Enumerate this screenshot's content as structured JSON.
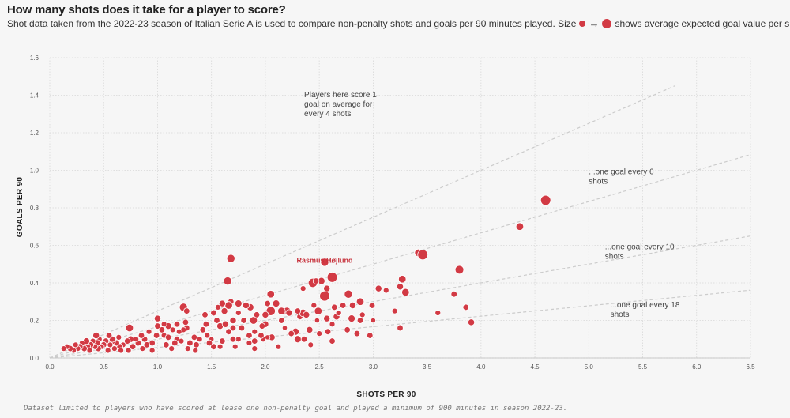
{
  "header": {
    "title": "How many shots does it take for a player to score?",
    "subtitle_pre": "Shot data taken from the 2022-23 season of Italian Serie A is used to compare non-penalty shots and goals per 90 minutes played. Size",
    "subtitle_arrow": "→",
    "subtitle_post": "shows average expected goal value per shot."
  },
  "footnote": "Dataset limited to players who have scored at lease one non-penalty goal and played a minimum of 900 minutes in season 2022-23.",
  "colors": {
    "point": "#d23a44",
    "point_stroke": "#ffffff",
    "ref_line": "#cccccc",
    "grid": "#d8d8d8"
  },
  "chart_data": {
    "type": "scatter",
    "xlabel": "SHOTS PER 90",
    "ylabel": "GOALS PER 90",
    "xlim": [
      0,
      6.5
    ],
    "ylim": [
      0,
      1.6
    ],
    "grid": true,
    "x_ticks": [
      "0.0",
      "0.5",
      "1.0",
      "1.5",
      "2.0",
      "2.5",
      "3.0",
      "3.5",
      "4.0",
      "4.5",
      "5.0",
      "5.5",
      "6.0",
      "6.5"
    ],
    "y_ticks": [
      "0.0",
      "0.2",
      "0.4",
      "0.6",
      "0.8",
      "1.0",
      "1.2",
      "1.4",
      "1.6"
    ],
    "reference_lines": [
      {
        "slope": 0.25,
        "label": "Players here score 1 goal on average for every 4 shots",
        "label_lines": [
          "Players here score 1",
          "goal on average for",
          "every 4 shots"
        ],
        "label_at": [
          2.36,
          1.39
        ]
      },
      {
        "slope": 0.1667,
        "label": "...one goal every 6 shots",
        "label_lines": [
          "...one goal every 6",
          "shots"
        ],
        "label_at": [
          5.0,
          0.98
        ]
      },
      {
        "slope": 0.1,
        "label": "...one goal every 10 shots",
        "label_lines": [
          "...one goal every 10",
          "shots"
        ],
        "label_at": [
          5.15,
          0.58
        ]
      },
      {
        "slope": 0.0556,
        "label": "...one goal every 18 shots",
        "label_lines": [
          "...one goal every 18",
          "shots"
        ],
        "label_at": [
          5.2,
          0.27
        ]
      }
    ],
    "annotations": [
      {
        "text": "Rasmus Højlund",
        "x": 2.55,
        "y": 0.5
      }
    ],
    "points": [
      [
        4.6,
        0.84,
        2
      ],
      [
        4.36,
        0.7,
        1.5
      ],
      [
        3.42,
        0.56,
        1.5
      ],
      [
        3.46,
        0.55,
        2
      ],
      [
        3.8,
        0.47,
        1.7
      ],
      [
        3.75,
        0.34,
        1.2
      ],
      [
        3.86,
        0.27,
        1.2
      ],
      [
        3.91,
        0.19,
        1.3
      ],
      [
        3.6,
        0.24,
        1.1
      ],
      [
        3.27,
        0.42,
        1.5
      ],
      [
        3.25,
        0.38,
        1.3
      ],
      [
        3.3,
        0.35,
        1.5
      ],
      [
        3.05,
        0.37,
        1.3
      ],
      [
        3.12,
        0.36,
        1.1
      ],
      [
        2.99,
        0.28,
        1.2
      ],
      [
        3.25,
        0.16,
        1.2
      ],
      [
        2.97,
        0.12,
        1.2
      ],
      [
        3.2,
        0.25,
        1.1
      ],
      [
        3.0,
        0.2,
        1
      ],
      [
        2.55,
        0.51,
        1.6
      ],
      [
        2.62,
        0.44,
        1.3
      ],
      [
        2.62,
        0.43,
        2
      ],
      [
        2.52,
        0.41,
        1.4
      ],
      [
        2.44,
        0.4,
        1.8
      ],
      [
        2.47,
        0.41,
        1.2
      ],
      [
        2.35,
        0.37,
        1.1
      ],
      [
        2.55,
        0.33,
        2
      ],
      [
        2.57,
        0.37,
        1.3
      ],
      [
        2.77,
        0.34,
        1.6
      ],
      [
        2.88,
        0.3,
        1.5
      ],
      [
        2.81,
        0.28,
        1.3
      ],
      [
        2.72,
        0.28,
        1.2
      ],
      [
        2.49,
        0.25,
        1.5
      ],
      [
        2.45,
        0.28,
        1.1
      ],
      [
        2.32,
        0.22,
        1.2
      ],
      [
        2.35,
        0.24,
        1.5
      ],
      [
        2.38,
        0.23,
        1.3
      ],
      [
        2.66,
        0.22,
        1.3
      ],
      [
        2.68,
        0.24,
        1.1
      ],
      [
        2.62,
        0.18,
        1.1
      ],
      [
        2.8,
        0.21,
        1.4
      ],
      [
        2.88,
        0.2,
        1.2
      ],
      [
        2.57,
        0.21,
        1.3
      ],
      [
        2.48,
        0.2,
        1
      ],
      [
        2.41,
        0.15,
        1.3
      ],
      [
        2.28,
        0.14,
        1.4
      ],
      [
        2.3,
        0.1,
        1.4
      ],
      [
        2.36,
        0.1,
        1.2
      ],
      [
        2.5,
        0.13,
        1.1
      ],
      [
        2.58,
        0.14,
        1.2
      ],
      [
        2.62,
        0.09,
        1.2
      ],
      [
        2.76,
        0.15,
        1.2
      ],
      [
        2.85,
        0.13,
        1.2
      ],
      [
        2.18,
        0.16,
        1
      ],
      [
        2.2,
        0.25,
        1.5
      ],
      [
        2.22,
        0.24,
        1.3
      ],
      [
        2.15,
        0.25,
        1.5
      ],
      [
        2.3,
        0.25,
        1.2
      ],
      [
        2.05,
        0.34,
        1.5
      ],
      [
        2.05,
        0.25,
        1.8
      ],
      [
        2.0,
        0.23,
        1.3
      ],
      [
        2.02,
        0.29,
        1.2
      ],
      [
        2.1,
        0.29,
        1.4
      ],
      [
        2.0,
        0.18,
        1.3
      ],
      [
        1.97,
        0.17,
        1.2
      ],
      [
        1.9,
        0.14,
        1.1
      ],
      [
        2.06,
        0.11,
        1.3
      ],
      [
        1.98,
        0.1,
        1.1
      ],
      [
        2.02,
        0.11,
        1
      ],
      [
        1.85,
        0.12,
        1.2
      ],
      [
        1.89,
        0.2,
        1.5
      ],
      [
        1.86,
        0.27,
        1.4
      ],
      [
        1.82,
        0.28,
        1.3
      ],
      [
        1.75,
        0.29,
        1.4
      ],
      [
        1.68,
        0.3,
        1.2
      ],
      [
        1.75,
        0.24,
        1.1
      ],
      [
        1.7,
        0.2,
        1.3
      ],
      [
        1.66,
        0.28,
        1.5
      ],
      [
        1.62,
        0.25,
        1.3
      ],
      [
        1.6,
        0.29,
        1.3
      ],
      [
        1.56,
        0.27,
        1.1
      ],
      [
        1.52,
        0.24,
        1.2
      ],
      [
        1.45,
        0.18,
        1.2
      ],
      [
        1.58,
        0.17,
        1.3
      ],
      [
        1.66,
        0.14,
        1.2
      ],
      [
        1.63,
        0.18,
        1.3
      ],
      [
        1.78,
        0.16,
        1.2
      ],
      [
        1.75,
        0.1,
        1.1
      ],
      [
        1.7,
        0.1,
        1.2
      ],
      [
        1.6,
        0.09,
        1.2
      ],
      [
        1.52,
        0.06,
        1.2
      ],
      [
        1.46,
        0.12,
        1.1
      ],
      [
        1.5,
        0.1,
        1
      ],
      [
        1.39,
        0.1,
        1.1
      ],
      [
        1.42,
        0.15,
        1.2
      ],
      [
        1.36,
        0.07,
        1.2
      ],
      [
        1.3,
        0.08,
        1.2
      ],
      [
        1.68,
        0.53,
        1.6
      ],
      [
        1.65,
        0.41,
        1.6
      ],
      [
        1.72,
        0.06,
        1.1
      ],
      [
        1.85,
        0.08,
        1.1
      ],
      [
        1.9,
        0.09,
        1.2
      ],
      [
        1.96,
        0.12,
        1.2
      ],
      [
        1.24,
        0.27,
        1.6
      ],
      [
        1.27,
        0.25,
        1.2
      ],
      [
        1.27,
        0.16,
        1.2
      ],
      [
        1.24,
        0.15,
        1.1
      ],
      [
        1.26,
        0.19,
        1.2
      ],
      [
        1.2,
        0.14,
        1.1
      ],
      [
        1.18,
        0.18,
        1.2
      ],
      [
        1.18,
        0.1,
        1.2
      ],
      [
        1.14,
        0.15,
        1.1
      ],
      [
        1.1,
        0.17,
        1.3
      ],
      [
        1.06,
        0.18,
        1.1
      ],
      [
        1.04,
        0.15,
        1.2
      ],
      [
        1.0,
        0.21,
        1.3
      ],
      [
        1.0,
        0.17,
        1.2
      ],
      [
        0.99,
        0.12,
        1.2
      ],
      [
        1.06,
        0.12,
        1.1
      ],
      [
        1.1,
        0.11,
        1.2
      ],
      [
        1.16,
        0.08,
        1.2
      ],
      [
        1.22,
        0.09,
        1.1
      ],
      [
        1.28,
        0.05,
        1.1
      ],
      [
        1.34,
        0.11,
        1.2
      ],
      [
        0.95,
        0.08,
        1.2
      ],
      [
        0.9,
        0.07,
        1.2
      ],
      [
        0.92,
        0.14,
        1.1
      ],
      [
        0.88,
        0.1,
        1.2
      ],
      [
        0.86,
        0.05,
        1.1
      ],
      [
        0.82,
        0.08,
        1.2
      ],
      [
        0.8,
        0.1,
        1.1
      ],
      [
        0.77,
        0.06,
        1.2
      ],
      [
        0.75,
        0.1,
        1.3
      ],
      [
        0.74,
        0.16,
        1.5
      ],
      [
        0.72,
        0.09,
        1.2
      ],
      [
        0.68,
        0.07,
        1.1
      ],
      [
        0.65,
        0.06,
        1.2
      ],
      [
        0.64,
        0.11,
        1.1
      ],
      [
        0.62,
        0.08,
        1.2
      ],
      [
        0.6,
        0.05,
        1.1
      ],
      [
        0.58,
        0.09,
        1.3
      ],
      [
        0.56,
        0.07,
        1.1
      ],
      [
        0.54,
        0.04,
        1.1
      ],
      [
        0.52,
        0.09,
        1.2
      ],
      [
        0.5,
        0.07,
        1.2
      ],
      [
        0.48,
        0.06,
        1.1
      ],
      [
        0.46,
        0.1,
        1.1
      ],
      [
        0.45,
        0.05,
        1.2
      ],
      [
        0.44,
        0.08,
        1.3
      ],
      [
        0.42,
        0.06,
        1.1
      ],
      [
        0.4,
        0.09,
        1.1
      ],
      [
        0.38,
        0.07,
        1.2
      ],
      [
        0.35,
        0.06,
        1.2
      ],
      [
        0.34,
        0.09,
        1.3
      ],
      [
        0.32,
        0.05,
        1.2
      ],
      [
        0.3,
        0.08,
        1.1
      ],
      [
        0.28,
        0.06,
        1.2
      ],
      [
        0.26,
        0.05,
        1.1
      ],
      [
        0.24,
        0.07,
        1.1
      ],
      [
        0.22,
        0.04,
        1.1
      ],
      [
        0.19,
        0.05,
        1.2
      ],
      [
        0.16,
        0.06,
        1.1
      ],
      [
        0.13,
        0.05,
        1.1
      ],
      [
        0.43,
        0.12,
        1.3
      ],
      [
        0.58,
        0.1,
        1.2
      ],
      [
        0.66,
        0.04,
        1.1
      ],
      [
        0.85,
        0.12,
        1.2
      ],
      [
        0.95,
        0.04,
        1.1
      ],
      [
        1.08,
        0.07,
        1.2
      ],
      [
        1.13,
        0.05,
        1.1
      ],
      [
        0.73,
        0.04,
        1.1
      ],
      [
        0.55,
        0.12,
        1.2
      ],
      [
        0.37,
        0.04,
        1.1
      ],
      [
        1.58,
        0.06,
        1.1
      ],
      [
        1.35,
        0.04,
        1.1
      ],
      [
        1.44,
        0.23,
        1.2
      ],
      [
        1.55,
        0.2,
        1.2
      ],
      [
        1.9,
        0.05,
        1.1
      ],
      [
        2.12,
        0.06,
        1.1
      ],
      [
        2.42,
        0.07,
        1.1
      ],
      [
        1.8,
        0.2,
        1.2
      ],
      [
        2.15,
        0.2,
        1.2
      ],
      [
        1.48,
        0.08,
        1.2
      ],
      [
        2.24,
        0.13,
        1.2
      ],
      [
        2.64,
        0.27,
        1.2
      ],
      [
        2.9,
        0.23,
        1.1
      ],
      [
        1.92,
        0.23,
        1.2
      ],
      [
        1.7,
        0.16,
        1.2
      ]
    ]
  }
}
